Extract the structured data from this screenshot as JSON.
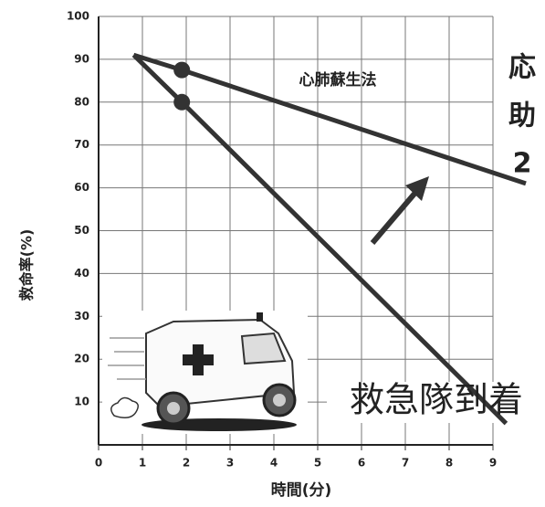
{
  "chart_data": {
    "type": "line",
    "xlabel": "時間(分)",
    "ylabel": "救命率(%)",
    "xlim": [
      0,
      9
    ],
    "ylim": [
      0,
      100
    ],
    "xticks": [
      0,
      1,
      2,
      3,
      4,
      5,
      6,
      7,
      8,
      9
    ],
    "yticks": [
      10,
      20,
      30,
      40,
      50,
      60,
      70,
      80,
      90,
      100
    ],
    "grid": true,
    "series": [
      {
        "color": "#333333",
        "x": [
          0.8,
          1.9,
          9.75
        ],
        "values": [
          91,
          87.5,
          61
        ]
      },
      {
        "color": "#333333",
        "x": [
          0.8,
          1.9,
          9.3
        ],
        "values": [
          91,
          80,
          5
        ]
      }
    ],
    "points": {
      "color": "#333333",
      "x": [
        1.9,
        1.9
      ],
      "values": [
        87.5,
        80
      ]
    },
    "annotations": [
      "心肺蘇生法",
      "救急隊到着",
      "応",
      "助",
      "2"
    ]
  }
}
